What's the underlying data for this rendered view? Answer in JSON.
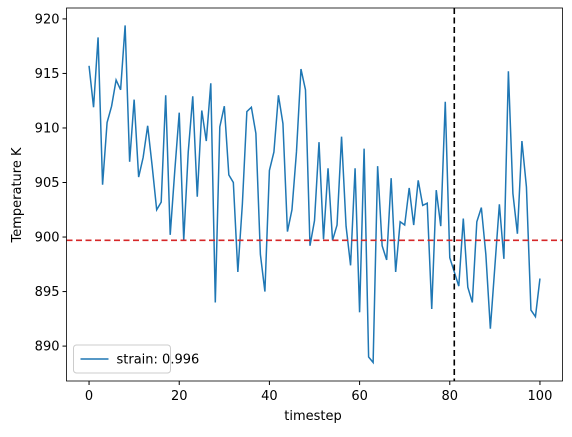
{
  "chart_data": {
    "type": "line",
    "xlabel": "timestep",
    "ylabel": "Temperature K",
    "x": [
      0,
      1,
      2,
      3,
      4,
      5,
      6,
      7,
      8,
      9,
      10,
      11,
      12,
      13,
      14,
      15,
      16,
      17,
      18,
      19,
      20,
      21,
      22,
      23,
      24,
      25,
      26,
      27,
      28,
      29,
      30,
      31,
      32,
      33,
      34,
      35,
      36,
      37,
      38,
      39,
      40,
      41,
      42,
      43,
      44,
      45,
      46,
      47,
      48,
      49,
      50,
      51,
      52,
      53,
      54,
      55,
      56,
      57,
      58,
      59,
      60,
      61,
      62,
      63,
      64,
      65,
      66,
      67,
      68,
      69,
      70,
      71,
      72,
      73,
      74,
      75,
      76,
      77,
      78,
      79,
      80,
      81,
      82,
      83,
      84,
      85,
      86,
      87,
      88,
      89,
      90,
      91,
      92,
      93,
      94,
      95,
      96,
      97,
      98,
      99,
      100
    ],
    "series": [
      {
        "name": "strain: 0.996",
        "color": "#1f77b4",
        "values": [
          915.7,
          911.9,
          918.3,
          904.8,
          910.5,
          912.0,
          914.4,
          913.5,
          919.4,
          906.9,
          912.6,
          905.5,
          907.3,
          910.2,
          906.5,
          902.5,
          903.2,
          913.0,
          900.2,
          906.0,
          911.4,
          899.7,
          907.8,
          912.9,
          903.7,
          911.6,
          908.8,
          914.1,
          894.0,
          910.1,
          912.0,
          905.7,
          905.0,
          896.8,
          903.0,
          911.5,
          911.9,
          909.5,
          898.4,
          895.0,
          906.1,
          907.8,
          913.0,
          910.4,
          900.5,
          902.5,
          907.8,
          915.4,
          913.5,
          899.2,
          901.5,
          908.7,
          899.8,
          906.3,
          899.7,
          901.1,
          909.2,
          901.0,
          897.4,
          906.3,
          893.1,
          908.1,
          889.0,
          888.5,
          906.5,
          899.2,
          897.9,
          905.4,
          896.8,
          901.4,
          901.1,
          904.5,
          901.1,
          905.2,
          902.9,
          903.1,
          893.4,
          904.3,
          901.0,
          912.4,
          898.1,
          896.8,
          895.5,
          901.7,
          895.4,
          894.0,
          901.4,
          902.7,
          898.4,
          891.6,
          897.3,
          903.0,
          898.0,
          915.2,
          904.0,
          900.3,
          908.8,
          904.6,
          893.3,
          892.7,
          896.2
        ]
      }
    ],
    "reference_lines": [
      {
        "axis": "y",
        "value": 899.7,
        "color": "#d62728"
      },
      {
        "axis": "x",
        "value": 81,
        "color": "#000000"
      }
    ],
    "xlim": [
      -5,
      105
    ],
    "xticks": [
      0,
      20,
      40,
      60,
      80,
      100
    ],
    "ylim": [
      886.8,
      921.0
    ],
    "yticks": [
      890,
      895,
      900,
      905,
      910,
      915,
      920
    ],
    "grid": false,
    "legend": "lower left"
  }
}
